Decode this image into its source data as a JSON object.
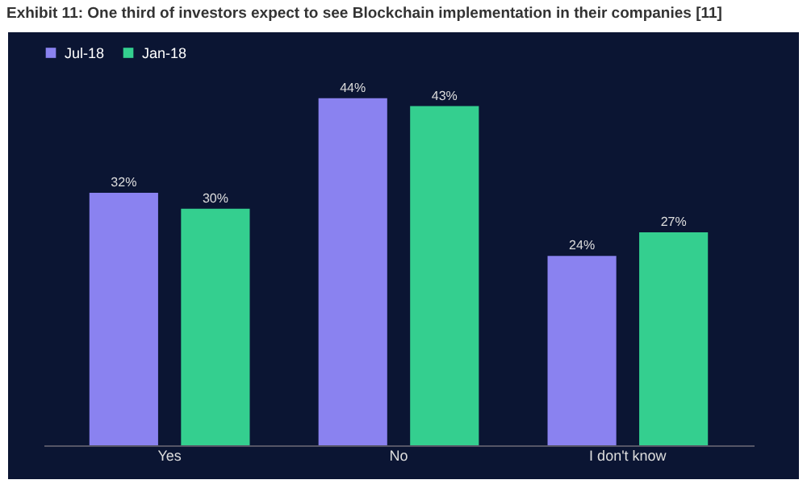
{
  "chart_data": {
    "type": "bar",
    "title": "Exhibit 11: One third of investors expect to see Blockchain implementation in their companies [11]",
    "categories": [
      "Yes",
      "No",
      "I don't know"
    ],
    "series": [
      {
        "name": "Jul-18",
        "color": "#8a82f0",
        "values": [
          32,
          44,
          24
        ],
        "value_labels": [
          "32%",
          "44%",
          "24%"
        ]
      },
      {
        "name": "Jan-18",
        "color": "#34cf8f",
        "values": [
          30,
          43,
          27
        ],
        "value_labels": [
          "30%",
          "43%",
          "27%"
        ]
      }
    ],
    "legend": "top",
    "grid": false
  }
}
